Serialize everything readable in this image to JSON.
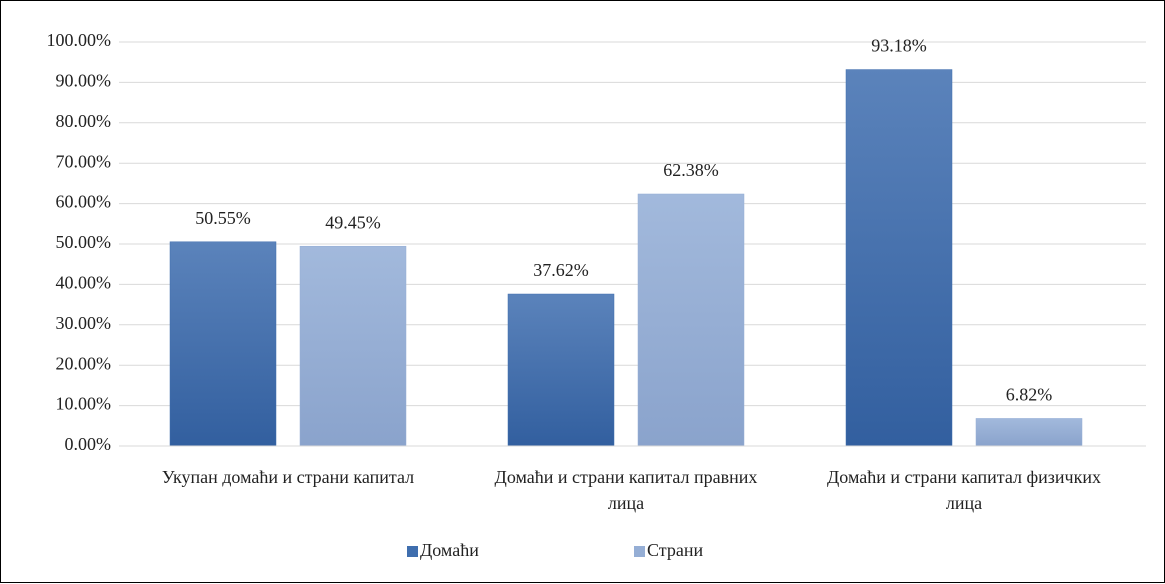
{
  "chart_data": {
    "type": "bar",
    "categories": [
      "Укупан домаћи и страни капитал",
      "Домаћи и страни капитал правних лица",
      "Домаћи и страни капитал физичких лица"
    ],
    "series": [
      {
        "name": "Домаћи",
        "color": "#3f6eae",
        "values": [
          50.55,
          37.62,
          93.18
        ],
        "value_labels": [
          "50.55%",
          "37.62%",
          "93.18%"
        ]
      },
      {
        "name": "Страни",
        "color": "#95aed5",
        "values": [
          49.45,
          62.38,
          6.82
        ],
        "value_labels": [
          "49.45%",
          "62.38%",
          "6.82%"
        ]
      }
    ],
    "ylim": [
      0,
      100
    ],
    "yticks": [
      {
        "value": 0,
        "label": "0.00%"
      },
      {
        "value": 10,
        "label": "10.00%"
      },
      {
        "value": 20,
        "label": "20.00%"
      },
      {
        "value": 30,
        "label": "30.00%"
      },
      {
        "value": 40,
        "label": "40.00%"
      },
      {
        "value": 50,
        "label": "50.00%"
      },
      {
        "value": 60,
        "label": "60.00%"
      },
      {
        "value": 70,
        "label": "70.00%"
      },
      {
        "value": 80,
        "label": "80.00%"
      },
      {
        "value": 90,
        "label": "90.00%"
      },
      {
        "value": 100,
        "label": "100.00%"
      }
    ],
    "grid": true,
    "legend": "bottom"
  }
}
